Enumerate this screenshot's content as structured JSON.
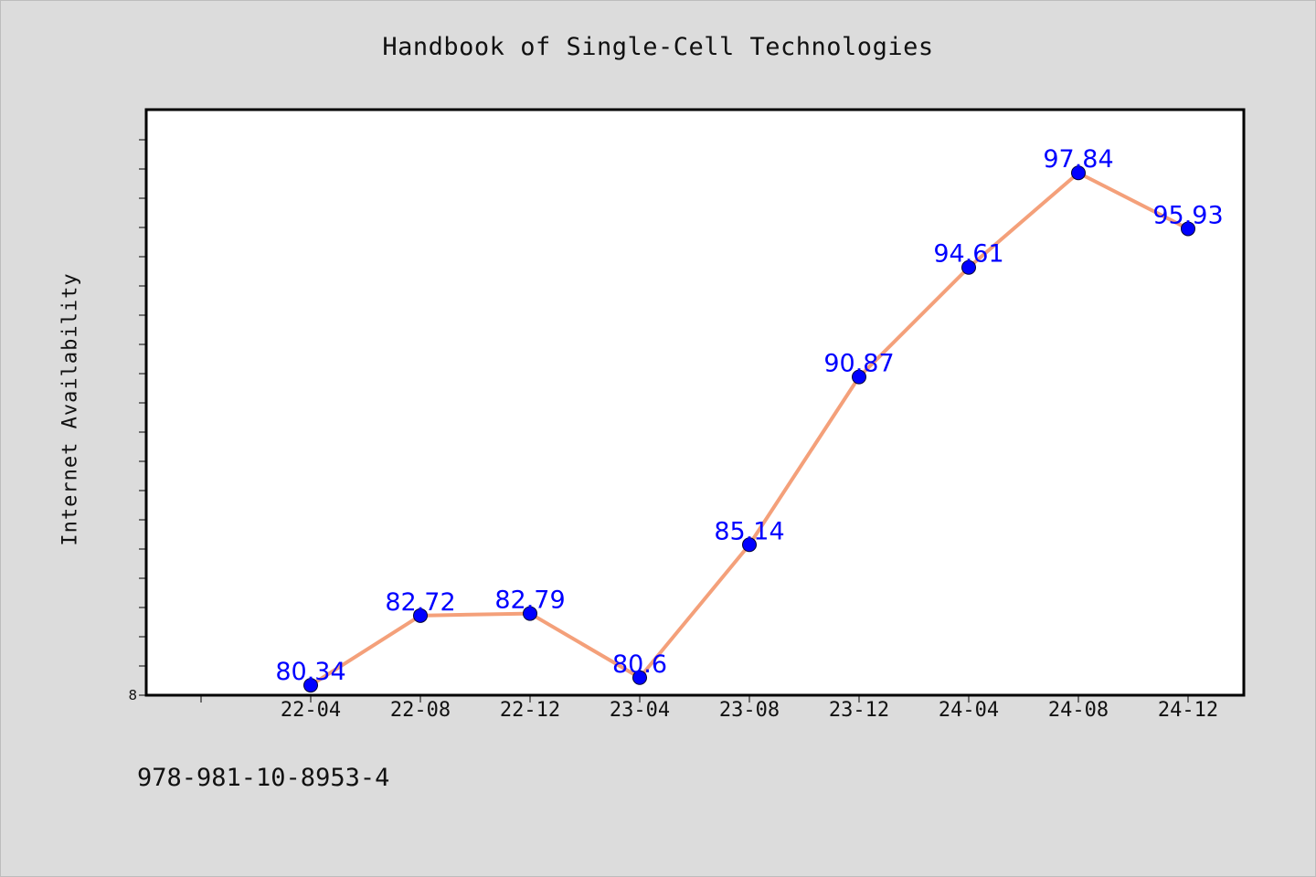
{
  "chart_data": {
    "type": "line",
    "title": "Handbook of Single-Cell Technologies",
    "xlabel": "",
    "ylabel": "Internet Availability",
    "categories": [
      "22-04",
      "22-08",
      "22-12",
      "23-04",
      "23-08",
      "23-12",
      "24-04",
      "24-08",
      "24-12"
    ],
    "series": [
      {
        "values": [
          80.34,
          82.72,
          82.79,
          80.6,
          85.14,
          90.87,
          94.61,
          97.84,
          95.93
        ],
        "line_color": "#f4a07a",
        "marker_color": "#0000ff"
      }
    ],
    "data_labels": [
      "80.34",
      "82.72",
      "82.79",
      "80.6",
      "85.14",
      "90.87",
      "94.61",
      "97.84",
      "95.93"
    ],
    "y_tick_labels": [
      "8"
    ],
    "ylim": [
      80,
      100
    ],
    "grid": false,
    "legend": false
  },
  "footer": {
    "isbn": "978-981-10-8953-4"
  },
  "colors": {
    "background": "#dcdcdc",
    "plot_background": "#ffffff",
    "axis": "#000000",
    "label": "#0000ff"
  }
}
